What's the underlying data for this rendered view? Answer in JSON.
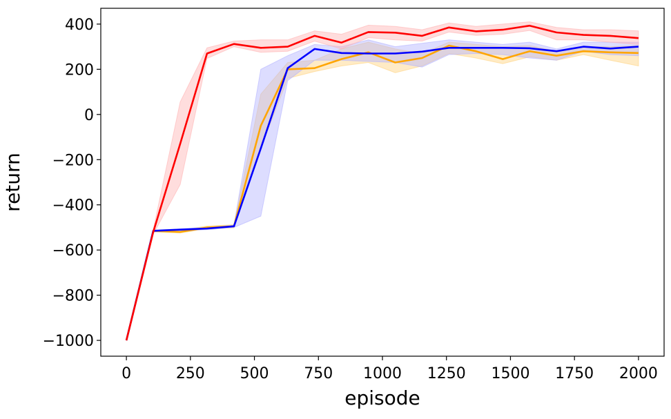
{
  "chart_data": {
    "type": "line",
    "title": "",
    "xlabel": "episode",
    "ylabel": "return",
    "xlim": [
      -100,
      2100
    ],
    "ylim": [
      -1070,
      470
    ],
    "x_ticks": [
      0,
      250,
      500,
      750,
      1000,
      1250,
      1500,
      1750,
      2000
    ],
    "x_tick_labels": [
      "0",
      "250",
      "500",
      "750",
      "1000",
      "1250",
      "1500",
      "1750",
      "2000"
    ],
    "y_ticks": [
      400,
      200,
      0,
      -200,
      -400,
      -600,
      -800,
      -1000
    ],
    "y_tick_labels": [
      "400",
      "200",
      "0",
      "−200",
      "−400",
      "−600",
      "−800",
      "−1000"
    ],
    "grid": false,
    "legend": "none",
    "x": [
      0,
      105,
      210,
      315,
      420,
      525,
      630,
      735,
      840,
      945,
      1050,
      1155,
      1260,
      1365,
      1470,
      1575,
      1680,
      1785,
      1890,
      2000
    ],
    "series": [
      {
        "color": "#ffa500",
        "band_color": "#ffd27f",
        "values": [
          -1000,
          -515,
          -520,
          -500,
          -495,
          -50,
          200,
          205,
          245,
          275,
          230,
          250,
          305,
          280,
          245,
          280,
          260,
          280,
          275,
          272
        ],
        "band_upper": [
          -1000,
          -512,
          -512,
          -494,
          -488,
          90,
          230,
          240,
          290,
          320,
          290,
          270,
          320,
          310,
          300,
          305,
          280,
          300,
          300,
          305
        ],
        "band_lower": [
          -1000,
          -520,
          -525,
          -506,
          -502,
          -150,
          160,
          190,
          215,
          230,
          185,
          215,
          270,
          250,
          225,
          255,
          240,
          265,
          240,
          215
        ]
      },
      {
        "color": "#0000ff",
        "band_color": "#b3b3ff",
        "values": [
          -1000,
          -515,
          -510,
          -505,
          -495,
          -150,
          205,
          290,
          272,
          270,
          270,
          278,
          295,
          295,
          295,
          293,
          280,
          300,
          292,
          300
        ],
        "band_upper": [
          -1000,
          -512,
          -506,
          -500,
          -490,
          200,
          260,
          310,
          300,
          330,
          300,
          315,
          330,
          320,
          310,
          320,
          290,
          320,
          320,
          320
        ],
        "band_lower": [
          -1000,
          -520,
          -515,
          -510,
          -500,
          -450,
          150,
          240,
          240,
          235,
          230,
          210,
          265,
          270,
          265,
          250,
          240,
          280,
          265,
          260
        ]
      },
      {
        "color": "#ff0000",
        "band_color": "#ffb3b3",
        "values": [
          -1000,
          -520,
          -130,
          270,
          312,
          295,
          300,
          348,
          318,
          365,
          362,
          348,
          385,
          368,
          375,
          393,
          363,
          352,
          348,
          338
        ],
        "band_upper": [
          -1000,
          -510,
          55,
          295,
          325,
          330,
          330,
          370,
          355,
          395,
          390,
          375,
          405,
          390,
          400,
          410,
          385,
          375,
          375,
          370
        ],
        "band_lower": [
          -1000,
          -530,
          -310,
          248,
          300,
          275,
          280,
          325,
          290,
          340,
          330,
          325,
          365,
          350,
          355,
          372,
          330,
          330,
          320,
          310
        ]
      }
    ]
  }
}
